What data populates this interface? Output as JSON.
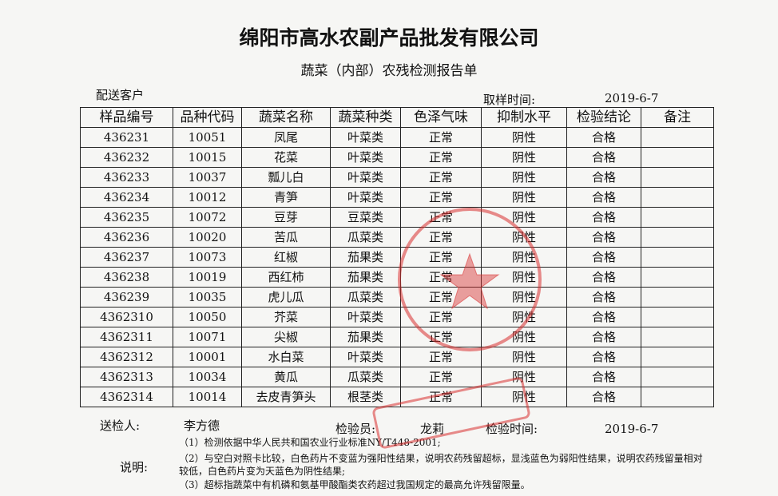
{
  "header": {
    "title": "绵阳市高水农副产品批发有限公司",
    "subtitle": "蔬菜（内部）农残检测报告单",
    "customer_label": "配送客户",
    "sampling_label": "取样时间:",
    "sampling_date": "2019-6-7"
  },
  "table": {
    "headers": [
      "样品编号",
      "品种代码",
      "蔬菜名称",
      "蔬菜种类",
      "色泽气味",
      "抑制水平",
      "检验结论",
      "备注"
    ],
    "rows": [
      [
        "436231",
        "10051",
        "凤尾",
        "叶菜类",
        "正常",
        "阴性",
        "合格"
      ],
      [
        "436232",
        "10015",
        "花菜",
        "叶菜类",
        "正常",
        "阴性",
        "合格"
      ],
      [
        "436233",
        "10037",
        "瓢儿白",
        "叶菜类",
        "正常",
        "阴性",
        "合格"
      ],
      [
        "436234",
        "10012",
        "青笋",
        "叶菜类",
        "正常",
        "阴性",
        "合格"
      ],
      [
        "436235",
        "10072",
        "豆芽",
        "豆菜类",
        "正常",
        "阴性",
        "合格"
      ],
      [
        "436236",
        "10020",
        "苦瓜",
        "瓜菜类",
        "正常",
        "阴性",
        "合格"
      ],
      [
        "436237",
        "10073",
        "红椒",
        "茄果类",
        "正常",
        "阴性",
        "合格"
      ],
      [
        "436238",
        "10019",
        "西红柿",
        "茄果类",
        "正常",
        "阴性",
        "合格"
      ],
      [
        "436239",
        "10035",
        "虎儿瓜",
        "瓜菜类",
        "正常",
        "阴性",
        "合格"
      ],
      [
        "4362310",
        "10050",
        "芥菜",
        "叶菜类",
        "正常",
        "阴性",
        "合格"
      ],
      [
        "4362311",
        "10071",
        "尖椒",
        "茄果类",
        "正常",
        "阴性",
        "合格"
      ],
      [
        "4362312",
        "10001",
        "水白菜",
        "叶菜类",
        "正常",
        "阴性",
        "合格"
      ],
      [
        "4362313",
        "10034",
        "黄瓜",
        "瓜菜类",
        "正常",
        "阴性",
        "合格"
      ],
      [
        "4362314",
        "10014",
        "去皮青笋头",
        "根茎类",
        "正常",
        "阴性",
        "合格"
      ]
    ]
  },
  "footer": {
    "submitter_label": "送检人:",
    "submitter": "李方德",
    "inspector_label": "检验员:",
    "inspector": "龙莉",
    "inspect_time_label": "检验时间:",
    "inspect_date": "2019-6-7",
    "notes_label": "说明:",
    "notes": [
      "（1）检测依据中华人民共和国农业行业标准NY/T448-2001;",
      "（2）与空白对照卡比较，白色药片不变蓝为强阳性结果，说明农药残留超标，显浅蓝色为弱阳性结果，说明农药残留量相对较低，白色药片变为天蓝色为阴性结果;",
      "（3）超标指蔬菜中有机磷和氨基甲酸酯类农药超过我国规定的最高允许残留限量。"
    ]
  }
}
